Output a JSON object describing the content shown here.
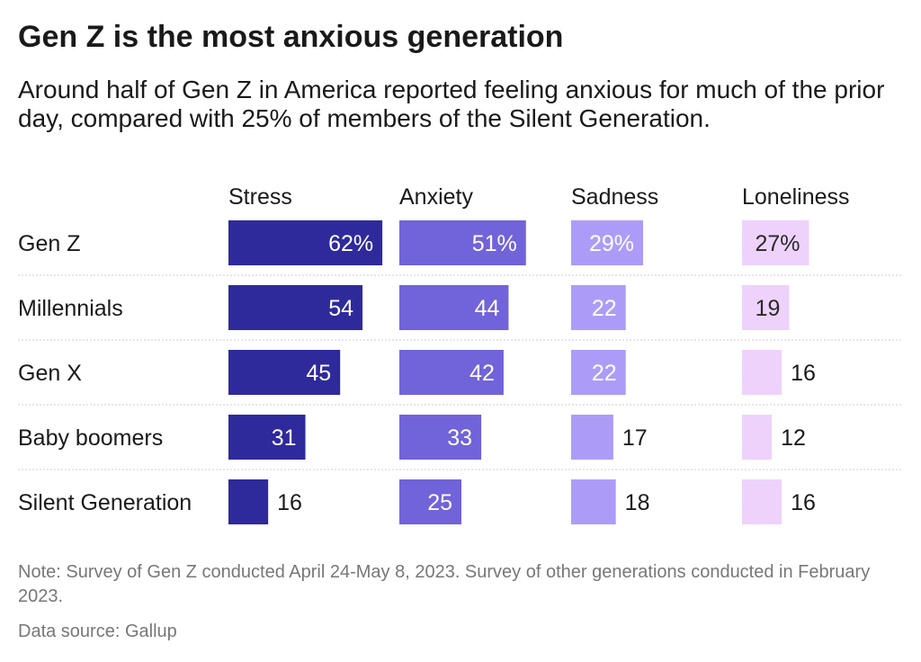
{
  "chart_data": {
    "type": "bar",
    "title": "Gen Z is the most anxious generation",
    "subtitle": "Around half of Gen Z in America reported feeling anxious for much of the prior day, compared with 25% of members of the Silent Generation.",
    "categories": [
      "Gen Z",
      "Millennials",
      "Gen X",
      "Baby boomers",
      "Silent Generation"
    ],
    "series": [
      {
        "name": "Stress",
        "values": [
          62,
          54,
          45,
          31,
          16
        ],
        "color": "#2e2a9c"
      },
      {
        "name": "Anxiety",
        "values": [
          51,
          44,
          42,
          33,
          25
        ],
        "color": "#7163d9"
      },
      {
        "name": "Sadness",
        "values": [
          29,
          22,
          22,
          17,
          18
        ],
        "color": "#ad9cf7"
      },
      {
        "name": "Loneliness",
        "values": [
          27,
          19,
          16,
          12,
          16
        ],
        "color": "#eed2fb"
      }
    ],
    "first_row_suffix": "%",
    "note": "Note: Survey of Gen Z conducted April 24-May 8, 2023. Survey of other generations conducted in February 2023.",
    "source": "Data source: Gallup"
  }
}
